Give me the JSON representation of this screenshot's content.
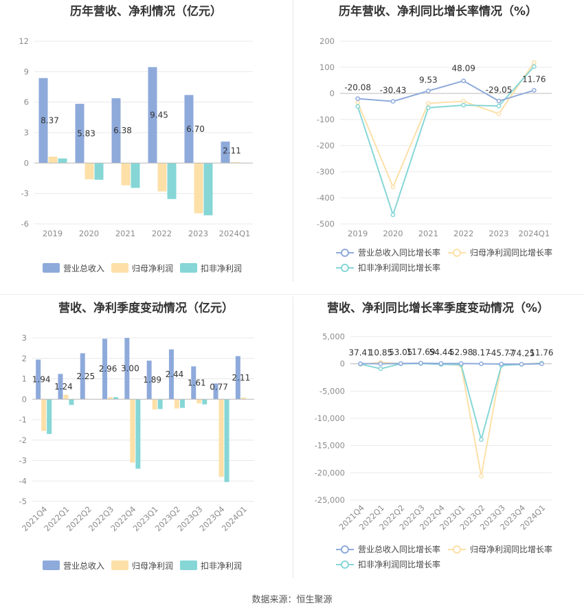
{
  "colors": {
    "revenue": "#8eaadb",
    "net_profit": "#fde0a8",
    "deducted_profit": "#86d6d6",
    "grid": "#e8e8e8",
    "axis_text": "#8c8c8c",
    "line_revenue": "#8eaadb",
    "line_net": "#fde0a8",
    "line_deducted": "#86d6d6"
  },
  "source_text": "数据来源：恒生聚源",
  "chart_data": [
    {
      "type": "bar",
      "title": "历年营收、净利情况（亿元）",
      "categories": [
        "2019",
        "2020",
        "2021",
        "2022",
        "2023",
        "2024Q1"
      ],
      "yticks": [
        "12",
        "9",
        "6",
        "3",
        "0",
        "-3",
        "-6"
      ],
      "ylim": [
        -6,
        12
      ],
      "series": [
        {
          "name": "营业总收入",
          "values": [
            8.37,
            5.83,
            6.38,
            9.45,
            6.7,
            2.11
          ]
        },
        {
          "name": "归母净利润",
          "values": [
            0.63,
            -1.6,
            -2.2,
            -2.8,
            -4.95,
            0.08
          ]
        },
        {
          "name": "扣非净利润",
          "values": [
            0.45,
            -1.65,
            -2.45,
            -3.55,
            -5.15,
            0.0
          ]
        }
      ],
      "data_labels": [
        "8.37",
        "5.83",
        "6.38",
        "9.45",
        "6.70",
        "2.11"
      ],
      "legend": "bottom"
    },
    {
      "type": "line",
      "title": "历年营收、净利同比增长率情况（%）",
      "categories": [
        "2019",
        "2020",
        "2021",
        "2022",
        "2023",
        "2024Q1"
      ],
      "yticks": [
        "200",
        "100",
        "0",
        "-100",
        "-200",
        "-300",
        "-400",
        "-500"
      ],
      "ylim": [
        -500,
        200
      ],
      "series": [
        {
          "name": "营业总收入同比增长率",
          "values": [
            -20.08,
            -30.43,
            9.53,
            48.09,
            -29.05,
            11.76
          ]
        },
        {
          "name": "归母净利润同比增长率",
          "values": [
            -35,
            -358,
            -38,
            -30,
            -78,
            118
          ]
        },
        {
          "name": "扣非净利润同比增长率",
          "values": [
            -50,
            -465,
            -55,
            -45,
            -48,
            103
          ]
        }
      ],
      "data_labels": [
        "-20.08",
        "-30.43",
        "9.53",
        "48.09",
        "-29.05",
        "11.76"
      ],
      "legend": "bottom"
    },
    {
      "type": "bar",
      "title": "营收、净利季度变动情况（亿元）",
      "categories": [
        "2021Q4",
        "2022Q1",
        "2022Q2",
        "2022Q3",
        "2022Q4",
        "2023Q1",
        "2023Q2",
        "2023Q3",
        "2023Q4",
        "2024Q1"
      ],
      "yticks": [
        "3",
        "2",
        "1",
        "0",
        "-1",
        "-2",
        "-3",
        "-4",
        "-5"
      ],
      "ylim": [
        -5,
        3
      ],
      "series": [
        {
          "name": "营业总收入",
          "values": [
            1.94,
            1.24,
            2.25,
            2.96,
            3.0,
            1.89,
            2.44,
            1.61,
            0.77,
            2.11
          ]
        },
        {
          "name": "归母净利润",
          "values": [
            -1.55,
            0.22,
            0.0,
            0.1,
            -3.1,
            -0.5,
            -0.45,
            -0.2,
            -3.8,
            0.08
          ]
        },
        {
          "name": "扣非净利润",
          "values": [
            -1.7,
            -0.28,
            0.0,
            0.1,
            -3.4,
            -0.48,
            -0.42,
            -0.25,
            -4.05,
            0.0
          ]
        }
      ],
      "data_labels": [
        "1.94",
        "1.24",
        "2.25",
        "2.96",
        "3.00",
        "1.89",
        "2.44",
        "1.61",
        "0.77",
        "2.11"
      ],
      "legend": "bottom"
    },
    {
      "type": "line",
      "title": "营收、净利同比增长率季度变动情况（%）",
      "categories": [
        "2021Q4",
        "2022Q1",
        "2022Q2",
        "2022Q3",
        "2022Q4",
        "2023Q1",
        "2023Q2",
        "2023Q3",
        "2023Q4",
        "2024Q1"
      ],
      "yticks": [
        "5,000",
        "0",
        "-5,000",
        "-10,000",
        "-15,000",
        "-20,000",
        "-25,000"
      ],
      "ylim": [
        -25000,
        5000
      ],
      "series": [
        {
          "name": "营业总收入同比增长率",
          "values": [
            37.41,
            10.85,
            53.05,
            117.69,
            54.44,
            52.98,
            8.17,
            -45.77,
            -74.25,
            11.76
          ]
        },
        {
          "name": "归母净利润同比增长率",
          "values": [
            -100,
            250,
            50,
            100,
            0,
            -300,
            -20600,
            -200,
            -50,
            120
          ]
        },
        {
          "name": "扣非净利润同比增长率",
          "values": [
            -50,
            -900,
            0,
            50,
            -100,
            -150,
            -13900,
            -300,
            -100,
            100
          ]
        }
      ],
      "data_labels": [
        "37.41",
        "10.85",
        "53.05",
        "117.69",
        "54.44",
        "52.98",
        "8.17",
        "-45.77",
        "-74.25",
        "11.76"
      ],
      "legend": "bottom"
    }
  ]
}
